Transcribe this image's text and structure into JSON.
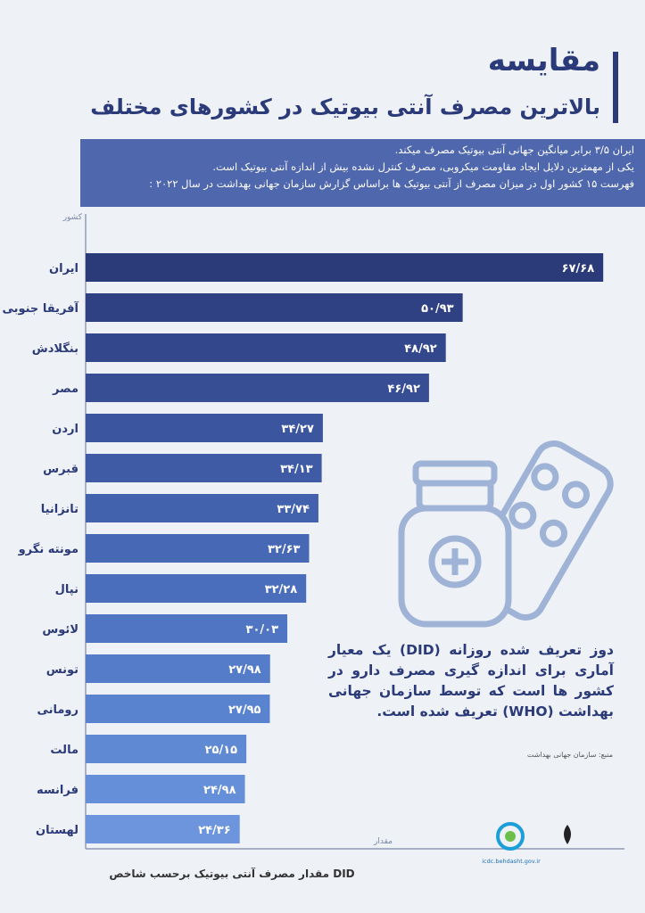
{
  "title": "مقایسه",
  "subtitle": "بالاترین مصرف آنتی بیوتیک در کشورهای مختلف",
  "info_lines": [
    "ایران ۳/۵ برابر میانگین جهانی آنتی بیوتیک مصرف میکند.",
    "یکی از مهمترین دلایل ایجاد مقاومت میکروبی، مصرف کنترل نشده بیش از اندازه آنتی بیوتیک است.",
    "فهرست ۱۵ کشور اول در میزان مصرف از آنتی بیوتیک ها  براساس گزارش سازمان جهانی بهداشت در سال ۲۰۲۲ :"
  ],
  "note": "دوز تعریف شده روزانه (DID) یک معیار آماری برای اندازه گیری مصرف دارو در کشور ها است که توسط سازمان جهانی بهداشت (WHO) تعریف شده است.",
  "source": "منبع: سازمان جهانی بهداشت",
  "logo_text": "icdc.behdasht.gov.ir",
  "chart_data": {
    "type": "hbar",
    "y_axis_label": "کشور",
    "x_axis_label": "مقدار",
    "x_title": "مقدار مصرف آنتی بیوتیک برحسب شاخص DID",
    "categories": [
      "ایران",
      "آفریقا جنوبی",
      "بنگلادش",
      "مصر",
      "اردن",
      "قبرس",
      "تانزانیا",
      "مونته نگرو",
      "نپال",
      "لائوس",
      "تونس",
      "رومانی",
      "مالت",
      "فرانسه",
      "لهستان"
    ],
    "values": [
      67.68,
      50.93,
      48.92,
      46.92,
      34.27,
      34.13,
      33.74,
      32.63,
      32.28,
      30.03,
      27.98,
      27.95,
      25.15,
      24.98,
      24.36
    ],
    "value_labels": [
      "۶۷/۶۸",
      "۵۰/۹۳",
      "۴۸/۹۲",
      "۴۶/۹۲",
      "۳۴/۲۷",
      "۳۴/۱۳",
      "۳۳/۷۴",
      "۳۲/۶۳",
      "۳۲/۲۸",
      "۳۰/۰۳",
      "۲۷/۹۸",
      "۲۷/۹۵",
      "۲۵/۱۵",
      "۲۴/۹۸",
      "۲۴/۳۶"
    ],
    "colors": [
      "#2b3a78",
      "#2f4083",
      "#33478c",
      "#374e95",
      "#3b559e",
      "#3f5ba6",
      "#4362ad",
      "#4768b5",
      "#4b6ebc",
      "#5075c3",
      "#557cc9",
      "#5a83cf",
      "#6089d4",
      "#668fd9",
      "#6c95dd"
    ],
    "xlim": [
      6,
      70
    ]
  }
}
